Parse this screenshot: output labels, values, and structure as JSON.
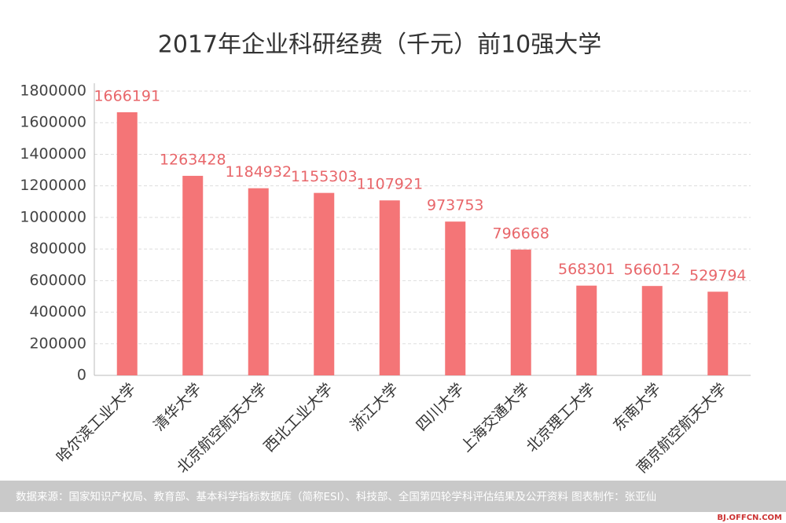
{
  "chart_data": {
    "type": "bar",
    "title": "2017年企业科研经费（千元）前10强大学",
    "categories": [
      "哈尔滨工业大学",
      "清华大学",
      "北京航空航天大学",
      "西北工业大学",
      "浙江大学",
      "四川大学",
      "上海交通大学",
      "北京理工大学",
      "东南大学",
      "南京航空航天大学"
    ],
    "values": [
      1666191,
      1263428,
      1184932,
      1155303,
      1107921,
      973753,
      796668,
      568301,
      566012,
      529794
    ],
    "color": "#f47577",
    "ylim": [
      0,
      1800000
    ],
    "yticks": [
      0,
      200000,
      400000,
      600000,
      800000,
      1000000,
      1200000,
      1400000,
      1600000,
      1800000
    ],
    "grid": true,
    "source": "数据来源：国家知识产权局、教育部、基本科学指标数据库（简称ESI）、科技部、全国第四轮学科评估结果及公开资料  图表制作：张亚仙",
    "watermark": "BJ.OFFCN.COM"
  }
}
